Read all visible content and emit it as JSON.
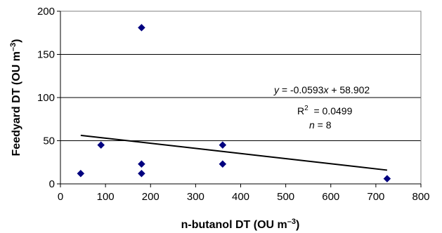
{
  "chart_data": {
    "type": "scatter",
    "xlabel": "n-butanol DT (OU m",
    "xlabel_sup": "–3",
    "xlabel_end": ")",
    "ylabel": "Feedyard DT (OU m",
    "ylabel_sup": "–3",
    "ylabel_end": ")",
    "xlim": [
      0,
      800
    ],
    "ylim": [
      0,
      200
    ],
    "x_ticks": [
      0,
      100,
      200,
      300,
      400,
      500,
      600,
      700,
      800
    ],
    "y_ticks": [
      0,
      50,
      100,
      150,
      200
    ],
    "x_tick_labels": [
      "0",
      "100",
      "200",
      "300",
      "400",
      "500",
      "600",
      "700",
      "800"
    ],
    "y_tick_labels": [
      "0",
      "50",
      "100",
      "150",
      "200"
    ],
    "horizontal_gridlines": true,
    "marker": "diamond",
    "marker_color": "#00007f",
    "series": [
      {
        "x": [
          45,
          90,
          180,
          180,
          180,
          360,
          360,
          725
        ],
        "y": [
          12,
          45,
          181,
          23,
          12,
          45,
          23,
          6
        ]
      }
    ],
    "trendline": {
      "slope": -0.0593,
      "intercept": 58.902,
      "x_range": [
        45,
        725
      ],
      "color": "#000000"
    },
    "annotations": {
      "equation": {
        "y_var": "y",
        "middle": " = -0.0593",
        "x_var": "x",
        "end": " + 58.902"
      },
      "r2": {
        "base": "R",
        "sup": "2",
        "value": "  = 0.0499"
      },
      "n": {
        "var": "n",
        "value": " = 8"
      }
    }
  }
}
